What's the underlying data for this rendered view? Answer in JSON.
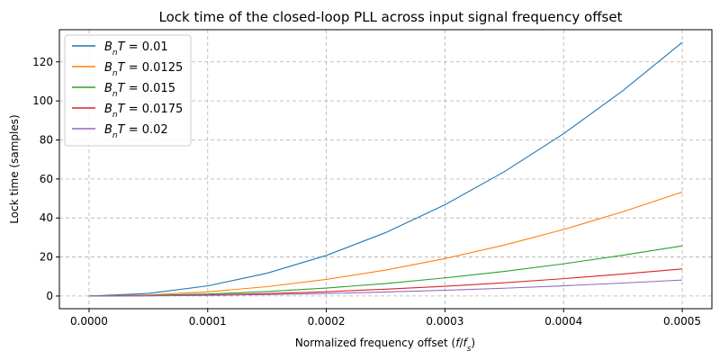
{
  "chart_data": {
    "type": "line",
    "title": "Lock time of the closed-loop PLL across input signal frequency offset",
    "xlabel": "Normalized frequency offset (f/f_s)",
    "ylabel": "Lock time (samples)",
    "xlim": [
      -1.25e-05,
      1.25e-05
    ],
    "xlim_data": [
      -2.5e-05,
      0.000525
    ],
    "ylim": [
      -6.5,
      136.5
    ],
    "x_ticks": [
      0,
      0.0001,
      0.0002,
      0.0003,
      0.0004,
      0.0005
    ],
    "x_tick_labels": [
      "0.0000",
      "0.0001",
      "0.0002",
      "0.0003",
      "0.0004",
      "0.0005"
    ],
    "y_ticks": [
      0,
      20,
      40,
      60,
      80,
      100,
      120
    ],
    "y_tick_labels": [
      "0",
      "20",
      "40",
      "60",
      "80",
      "100",
      "120"
    ],
    "grid": true,
    "legend_position": "top-left",
    "x": [
      0,
      5e-05,
      0.0001,
      0.00015,
      0.0002,
      0.00025,
      0.0003,
      0.00035,
      0.0004,
      0.00045,
      0.0005
    ],
    "series": [
      {
        "name": "B_nT = 0.01",
        "color": "#1f77b4",
        "values": [
          0,
          1.3,
          5.2,
          11.7,
          20.8,
          32.5,
          46.8,
          63.7,
          83.2,
          105.3,
          130
        ]
      },
      {
        "name": "B_nT = 0.0125",
        "color": "#ff7f0e",
        "values": [
          0,
          0.53,
          2.13,
          4.8,
          8.53,
          13.3,
          19.2,
          26.1,
          34.1,
          43.2,
          53.3
        ]
      },
      {
        "name": "B_nT = 0.015",
        "color": "#2ca02c",
        "values": [
          0,
          0.26,
          1.03,
          2.3,
          4.1,
          6.4,
          9.3,
          12.6,
          16.5,
          20.9,
          25.7
        ]
      },
      {
        "name": "B_nT = 0.0175",
        "color": "#d62728",
        "values": [
          0,
          0.14,
          0.56,
          1.25,
          2.2,
          3.5,
          5.0,
          6.8,
          8.9,
          11.3,
          13.9
        ]
      },
      {
        "name": "B_nT = 0.02",
        "color": "#9467bd",
        "values": [
          0,
          0.08,
          0.33,
          0.74,
          1.3,
          2.05,
          2.95,
          4.0,
          5.25,
          6.65,
          8.2
        ]
      }
    ]
  }
}
